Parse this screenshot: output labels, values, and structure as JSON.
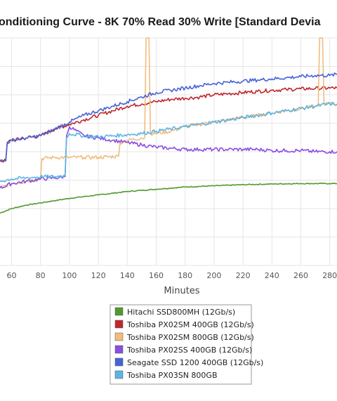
{
  "chart_data": {
    "type": "line",
    "title": "onditioning Curve - 8K 70% Read 30% Write [Standard Devia",
    "xlabel": "Minutes",
    "ylabel": "",
    "x_ticks": [
      60,
      80,
      100,
      120,
      140,
      160,
      180,
      200,
      220,
      240,
      260,
      280
    ],
    "xlim": [
      52,
      285
    ],
    "ylim": [
      0,
      100
    ],
    "grid": true,
    "legend_position": "bottom",
    "series": [
      {
        "name": "Hitachi SSD800MH (12Gb/s)",
        "color": "#4f9a2b",
        "points": [
          [
            52,
            23
          ],
          [
            60,
            25
          ],
          [
            70,
            26.5
          ],
          [
            80,
            27.5
          ],
          [
            90,
            28.5
          ],
          [
            100,
            29.5
          ],
          [
            120,
            31
          ],
          [
            140,
            32.5
          ],
          [
            160,
            33.5
          ],
          [
            180,
            34.5
          ],
          [
            200,
            35
          ],
          [
            220,
            35.5
          ],
          [
            240,
            35.8
          ],
          [
            260,
            36
          ],
          [
            280,
            36
          ],
          [
            285,
            36
          ]
        ]
      },
      {
        "name": "Toshiba PX02SM 400GB (12Gb/s)",
        "color": "#c0272d",
        "points": [
          [
            52,
            46
          ],
          [
            56,
            46
          ],
          [
            57,
            54
          ],
          [
            60,
            55
          ],
          [
            70,
            56
          ],
          [
            80,
            57
          ],
          [
            90,
            60
          ],
          [
            100,
            62
          ],
          [
            110,
            64
          ],
          [
            120,
            66
          ],
          [
            130,
            68
          ],
          [
            140,
            70
          ],
          [
            150,
            71
          ],
          [
            160,
            72
          ],
          [
            170,
            73
          ],
          [
            180,
            73.5
          ],
          [
            190,
            74
          ],
          [
            200,
            75
          ],
          [
            210,
            75.5
          ],
          [
            220,
            76
          ],
          [
            230,
            76.5
          ],
          [
            240,
            77
          ],
          [
            250,
            77.3
          ],
          [
            260,
            77.6
          ],
          [
            270,
            77.8
          ],
          [
            280,
            78
          ],
          [
            285,
            78
          ]
        ]
      },
      {
        "name": "Toshiba PX02SM 800GB (12Gb/s)",
        "color": "#f2bc7e",
        "points": [
          [
            52,
            34
          ],
          [
            60,
            36
          ],
          [
            70,
            37
          ],
          [
            80,
            38
          ],
          [
            81,
            47
          ],
          [
            90,
            47.5
          ],
          [
            100,
            47.5
          ],
          [
            110,
            47.5
          ],
          [
            120,
            47.5
          ],
          [
            134,
            48
          ],
          [
            135,
            54
          ],
          [
            140,
            55
          ],
          [
            150,
            56
          ],
          [
            152,
            56
          ],
          [
            153,
            100
          ],
          [
            155,
            100
          ],
          [
            156,
            58
          ],
          [
            160,
            58
          ],
          [
            170,
            59
          ],
          [
            180,
            61
          ],
          [
            190,
            62
          ],
          [
            200,
            63
          ],
          [
            210,
            64
          ],
          [
            220,
            65
          ],
          [
            230,
            66
          ],
          [
            240,
            67
          ],
          [
            250,
            68
          ],
          [
            260,
            69
          ],
          [
            270,
            70
          ],
          [
            272,
            70
          ],
          [
            273,
            100
          ],
          [
            275,
            100
          ],
          [
            276,
            71
          ],
          [
            280,
            71
          ],
          [
            285,
            71
          ]
        ]
      },
      {
        "name": "Toshiba PX02SS 400GB (12Gb/s)",
        "color": "#8a4fe0",
        "points": [
          [
            52,
            34
          ],
          [
            60,
            36
          ],
          [
            70,
            37
          ],
          [
            80,
            38
          ],
          [
            90,
            38.5
          ],
          [
            97,
            39
          ],
          [
            98,
            57
          ],
          [
            100,
            61
          ],
          [
            110,
            57
          ],
          [
            120,
            56
          ],
          [
            130,
            55
          ],
          [
            140,
            54
          ],
          [
            150,
            53
          ],
          [
            160,
            52
          ],
          [
            170,
            51.5
          ],
          [
            180,
            51
          ],
          [
            190,
            51
          ],
          [
            200,
            51
          ],
          [
            210,
            51
          ],
          [
            220,
            51
          ],
          [
            230,
            51
          ],
          [
            240,
            50.5
          ],
          [
            250,
            50.5
          ],
          [
            260,
            50.5
          ],
          [
            270,
            50
          ],
          [
            280,
            50
          ],
          [
            285,
            50
          ]
        ]
      },
      {
        "name": "Seagate SSD 1200 400GB (12Gb/s)",
        "color": "#4663d9",
        "points": [
          [
            52,
            46
          ],
          [
            56,
            46
          ],
          [
            57,
            54
          ],
          [
            60,
            55
          ],
          [
            70,
            56
          ],
          [
            80,
            57
          ],
          [
            90,
            60
          ],
          [
            100,
            63
          ],
          [
            110,
            66
          ],
          [
            120,
            68
          ],
          [
            130,
            70
          ],
          [
            140,
            72
          ],
          [
            150,
            74
          ],
          [
            160,
            76
          ],
          [
            170,
            77
          ],
          [
            180,
            78
          ],
          [
            190,
            79
          ],
          [
            200,
            80
          ],
          [
            210,
            80.5
          ],
          [
            220,
            81
          ],
          [
            230,
            81.5
          ],
          [
            240,
            82
          ],
          [
            250,
            82.5
          ],
          [
            260,
            83
          ],
          [
            270,
            83.5
          ],
          [
            280,
            83.5
          ],
          [
            285,
            84
          ]
        ]
      },
      {
        "name": "Toshiba PX03SN 800GB",
        "color": "#5ab5e4",
        "points": [
          [
            52,
            37
          ],
          [
            60,
            38
          ],
          [
            70,
            38.5
          ],
          [
            80,
            39
          ],
          [
            90,
            39
          ],
          [
            97,
            39.5
          ],
          [
            98,
            56
          ],
          [
            100,
            58
          ],
          [
            110,
            57
          ],
          [
            120,
            56.5
          ],
          [
            130,
            57
          ],
          [
            140,
            57.5
          ],
          [
            150,
            58
          ],
          [
            160,
            59
          ],
          [
            170,
            60
          ],
          [
            180,
            61
          ],
          [
            190,
            62
          ],
          [
            200,
            63
          ],
          [
            210,
            64
          ],
          [
            220,
            65
          ],
          [
            230,
            66
          ],
          [
            240,
            67
          ],
          [
            250,
            68
          ],
          [
            260,
            69
          ],
          [
            270,
            70
          ],
          [
            280,
            71
          ],
          [
            285,
            71
          ]
        ]
      }
    ]
  }
}
